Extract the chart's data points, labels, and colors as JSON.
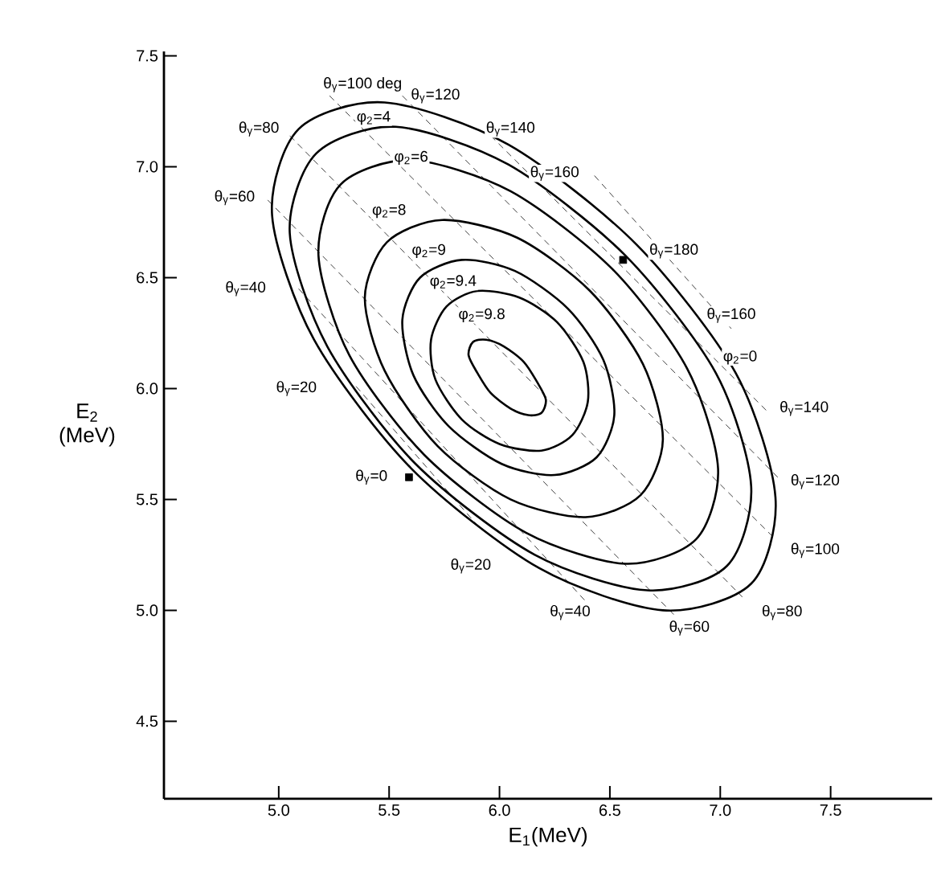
{
  "chart_data": {
    "type": "line",
    "xlabel": "E$_{1}$(MeV)",
    "ylabel": "E$_{2}$ (MeV)",
    "xlim": [
      4.48,
      7.96
    ],
    "ylim": [
      4.15,
      7.52
    ],
    "xticks": [
      {
        "value": 5,
        "label": "5.0"
      },
      5.5,
      {
        "value": 6,
        "label": "6.0"
      },
      6.5,
      {
        "value": 7,
        "label": "7.0"
      },
      7.5
    ],
    "yticks": [
      4.5,
      {
        "value": 5,
        "label": "5.0"
      },
      5.5,
      {
        "value": 6,
        "label": "6.0"
      },
      6.5,
      {
        "value": 7,
        "label": "7.0"
      },
      7.5
    ],
    "marker": "none",
    "series": [
      {
        "color": "#404040",
        "line_style": "dashed",
        "x": [
          5.35,
          5.92
        ],
        "values": [
          6.01,
          5.36
        ]
      },
      {
        "color": "#404040",
        "line_style": "dashed",
        "x": [
          5.09,
          6.4
        ],
        "values": [
          6.45,
          5.03
        ]
      },
      {
        "color": "#404040",
        "line_style": "dashed",
        "x": [
          4.95,
          6.8
        ],
        "values": [
          6.85,
          4.97
        ]
      },
      {
        "color": "#404040",
        "line_style": "dashed",
        "x": [
          5.05,
          7.1
        ],
        "values": [
          7.14,
          5.06
        ]
      },
      {
        "color": "#404040",
        "line_style": "dashed",
        "x": [
          5.23,
          7.24
        ],
        "values": [
          7.32,
          5.33
        ]
      },
      {
        "color": "#404040",
        "line_style": "dashed",
        "x": [
          5.56,
          7.27
        ],
        "values": [
          7.32,
          5.59
        ]
      },
      {
        "color": "#404040",
        "line_style": "dashed",
        "x": [
          5.96,
          7.22
        ],
        "values": [
          7.14,
          5.89
        ]
      },
      {
        "color": "#404040",
        "line_style": "dashed",
        "x": [
          6.43,
          7.05
        ],
        "values": [
          6.96,
          6.27
        ]
      },
      {
        "type": "scatter",
        "marker": "square",
        "color": "#000000",
        "x": [
          5.59,
          6.56
        ],
        "values": [
          5.6,
          6.58
        ]
      }
    ],
    "annotations": [
      "θ$_{γ}$=100 deg",
      "θ$_{γ}$=120",
      "θ$_{γ}$=140",
      "θ$_{γ}$=160",
      "θ$_{γ}$=180",
      "θ$_{γ}$=160",
      "φ$_{2}$=0",
      "θ$_{γ}$=140",
      "θ$_{γ}$=120",
      "θ$_{γ}$=100",
      "θ$_{γ}$=80",
      "θ$_{γ}$=60",
      "θ$_{γ}$=40",
      "θ$_{γ}$=20",
      "θ$_{γ}$=0",
      "θ$_{γ}$=20",
      "θ$_{γ}$=40",
      "θ$_{γ}$=60",
      "θ$_{γ}$=80",
      "φ$_{2}$=4",
      "φ$_{2}$=6",
      "φ$_{2}$=8",
      "φ$_{2}$=9",
      "φ$_{2}$=9.4",
      "φ$_{2}$=9.8"
    ]
  }
}
